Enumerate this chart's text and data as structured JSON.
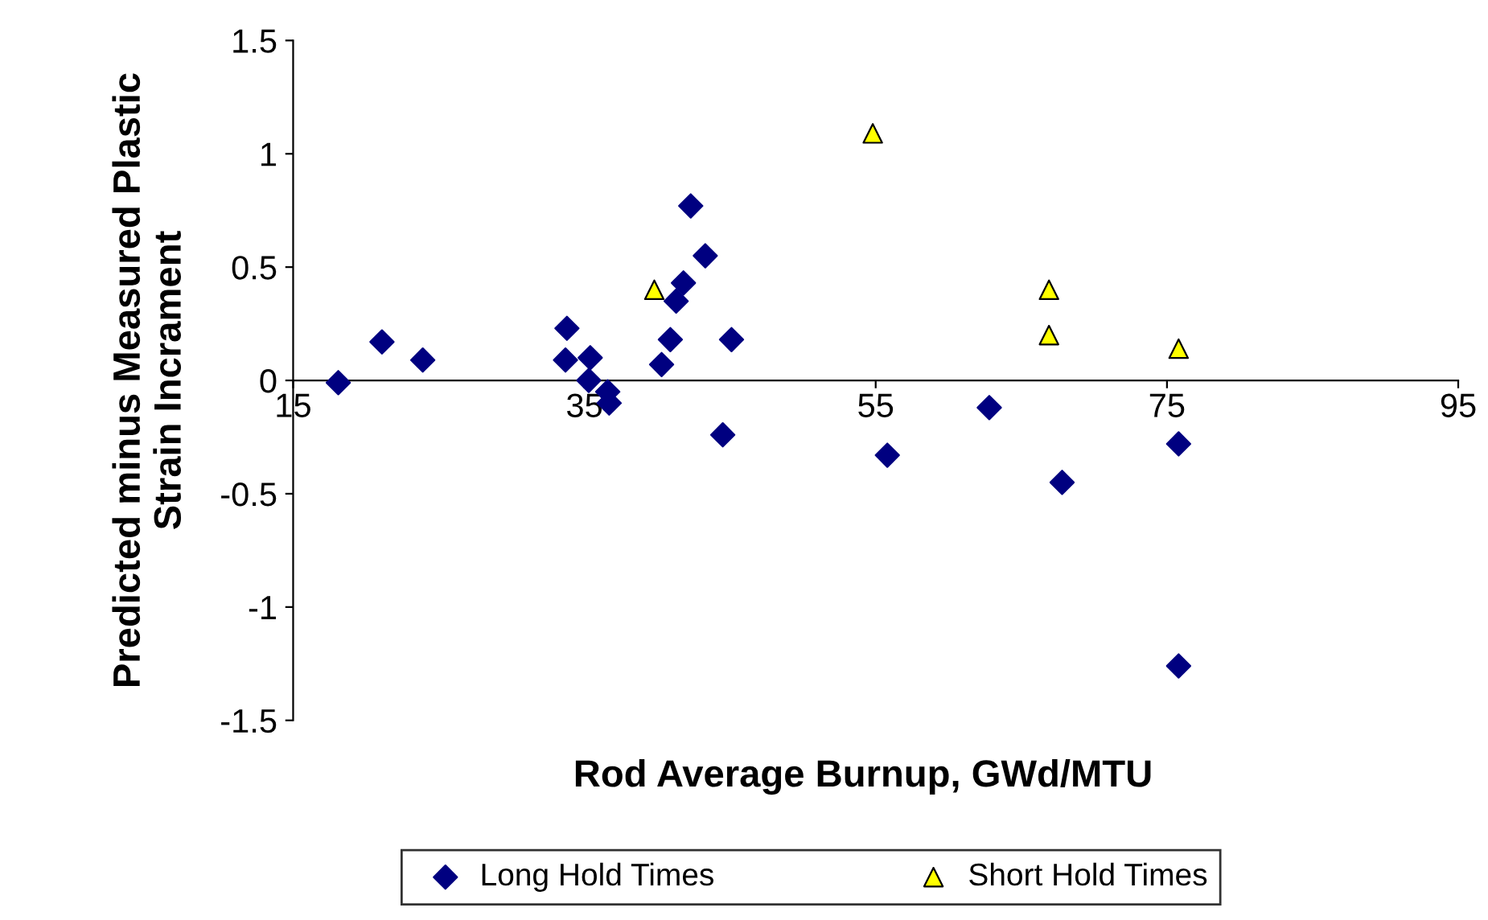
{
  "chart_data": {
    "type": "scatter",
    "xlabel": "Rod Average Burnup, GWd/MTU",
    "ylabel": "Predicted minus Measured Plastic\nStrain Incrament",
    "xlim": [
      15,
      95
    ],
    "xticks": [
      15,
      35,
      55,
      75,
      95
    ],
    "ylim": [
      -1.5,
      1.5
    ],
    "yticks": [
      -1.5,
      -1,
      -0.5,
      0,
      0.5,
      1,
      1.5
    ],
    "grid": false,
    "legend": "bottom",
    "series": [
      {
        "name": "Long Hold Times",
        "color": "#000080",
        "marker": "diamond",
        "x": [
          18.1,
          21.1,
          23.9,
          33.8,
          33.7,
          35.4,
          35.3,
          36.6,
          36.7,
          40.3,
          40.9,
          41.3,
          41.8,
          42.3,
          43.3,
          44.5,
          45.1,
          55.8,
          62.8,
          67.8,
          75.8,
          75.8
        ],
        "values": [
          -0.01,
          0.17,
          0.09,
          0.23,
          0.09,
          0.1,
          0.0,
          -0.05,
          -0.1,
          0.07,
          0.18,
          0.35,
          0.43,
          0.77,
          0.55,
          -0.24,
          0.18,
          -0.33,
          -0.12,
          -0.45,
          -0.28,
          -1.26
        ]
      },
      {
        "name": "Short Hold Times",
        "color": "#ffff00",
        "marker": "triangle",
        "x": [
          39.8,
          54.8,
          66.9,
          66.9,
          75.8
        ],
        "values": [
          0.4,
          1.09,
          0.4,
          0.2,
          0.14
        ]
      }
    ]
  }
}
